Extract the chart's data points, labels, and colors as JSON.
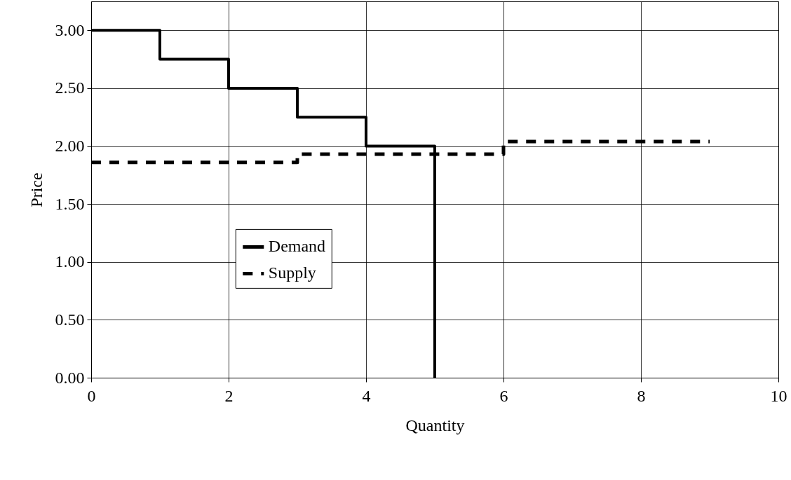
{
  "chart_data": {
    "type": "step",
    "xlabel": "Quantity",
    "ylabel": "Price",
    "series": [
      {
        "name": "Demand",
        "color": "#000000",
        "line_style": "solid",
        "x": [
          0,
          1,
          2,
          3,
          4,
          5
        ],
        "values": [
          3.0,
          2.75,
          2.5,
          2.25,
          2.0,
          0
        ]
      },
      {
        "name": "Supply",
        "color": "#000000",
        "line_style": "dashed",
        "x": [
          0,
          3,
          6,
          9
        ],
        "values": [
          1.86,
          1.93,
          2.04,
          2.04
        ]
      }
    ],
    "xlim": [
      0,
      10
    ],
    "xticks": [
      0,
      2,
      4,
      6,
      8,
      10
    ],
    "ylim": [
      0,
      3.25
    ],
    "yticks": [
      {
        "value": 0,
        "label": "0.00"
      },
      {
        "value": 0.5,
        "label": "0.50"
      },
      {
        "value": 1,
        "label": "1.00"
      },
      {
        "value": 1.5,
        "label": "1.50"
      },
      {
        "value": 2,
        "label": "2.00"
      },
      {
        "value": 2.5,
        "label": "2.50"
      },
      {
        "value": 3,
        "label": "3.00"
      }
    ],
    "grid": true,
    "legend": "center left",
    "marker": "none"
  }
}
